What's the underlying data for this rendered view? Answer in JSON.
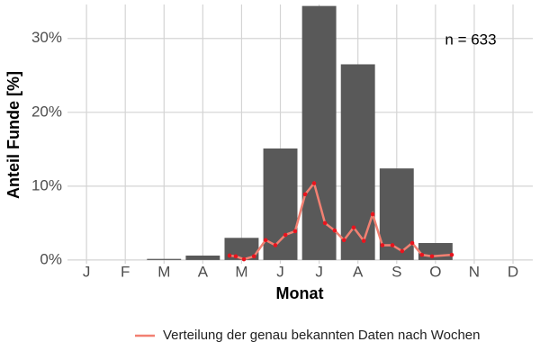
{
  "chart_data": {
    "type": "bar",
    "y_label": "Anteil Funde [%]",
    "x_label": "Monat",
    "annotation": "n = 633",
    "categories": [
      "J",
      "F",
      "M",
      "A",
      "M",
      "J",
      "J",
      "A",
      "S",
      "O",
      "N",
      "D"
    ],
    "values": [
      0,
      0,
      0.15,
      0.6,
      3.0,
      15.1,
      34.4,
      26.5,
      12.4,
      2.3,
      0,
      0
    ],
    "color": "#595959",
    "ylim": [
      -0.5,
      34.6
    ],
    "yticks": [
      {
        "value": 0,
        "label": "0%"
      },
      {
        "value": 10,
        "label": "10%"
      },
      {
        "value": 20,
        "label": "20%"
      },
      {
        "value": 30,
        "label": "30%"
      }
    ],
    "xlim": [
      0.51,
      12.51
    ],
    "grid": true,
    "legend": "bottom",
    "line": {
      "name": "Verteilung der genau bekannten Daten nach Wochen",
      "color": "#f28072",
      "point_color": "#e8141e",
      "x": [
        4.69,
        4.85,
        5.06,
        5.32,
        5.62,
        5.87,
        6.13,
        6.38,
        6.64,
        6.87,
        7.15,
        7.4,
        7.64,
        7.89,
        8.15,
        8.38,
        8.63,
        8.89,
        9.14,
        9.4,
        9.65,
        9.91,
        10.42
      ],
      "values": [
        0.6,
        0.5,
        0.1,
        0.5,
        2.7,
        2.0,
        3.4,
        3.9,
        8.9,
        10.4,
        5.0,
        4.0,
        2.7,
        4.4,
        2.6,
        6.2,
        2.0,
        2.0,
        1.2,
        2.3,
        0.7,
        0.5,
        0.7
      ]
    }
  }
}
